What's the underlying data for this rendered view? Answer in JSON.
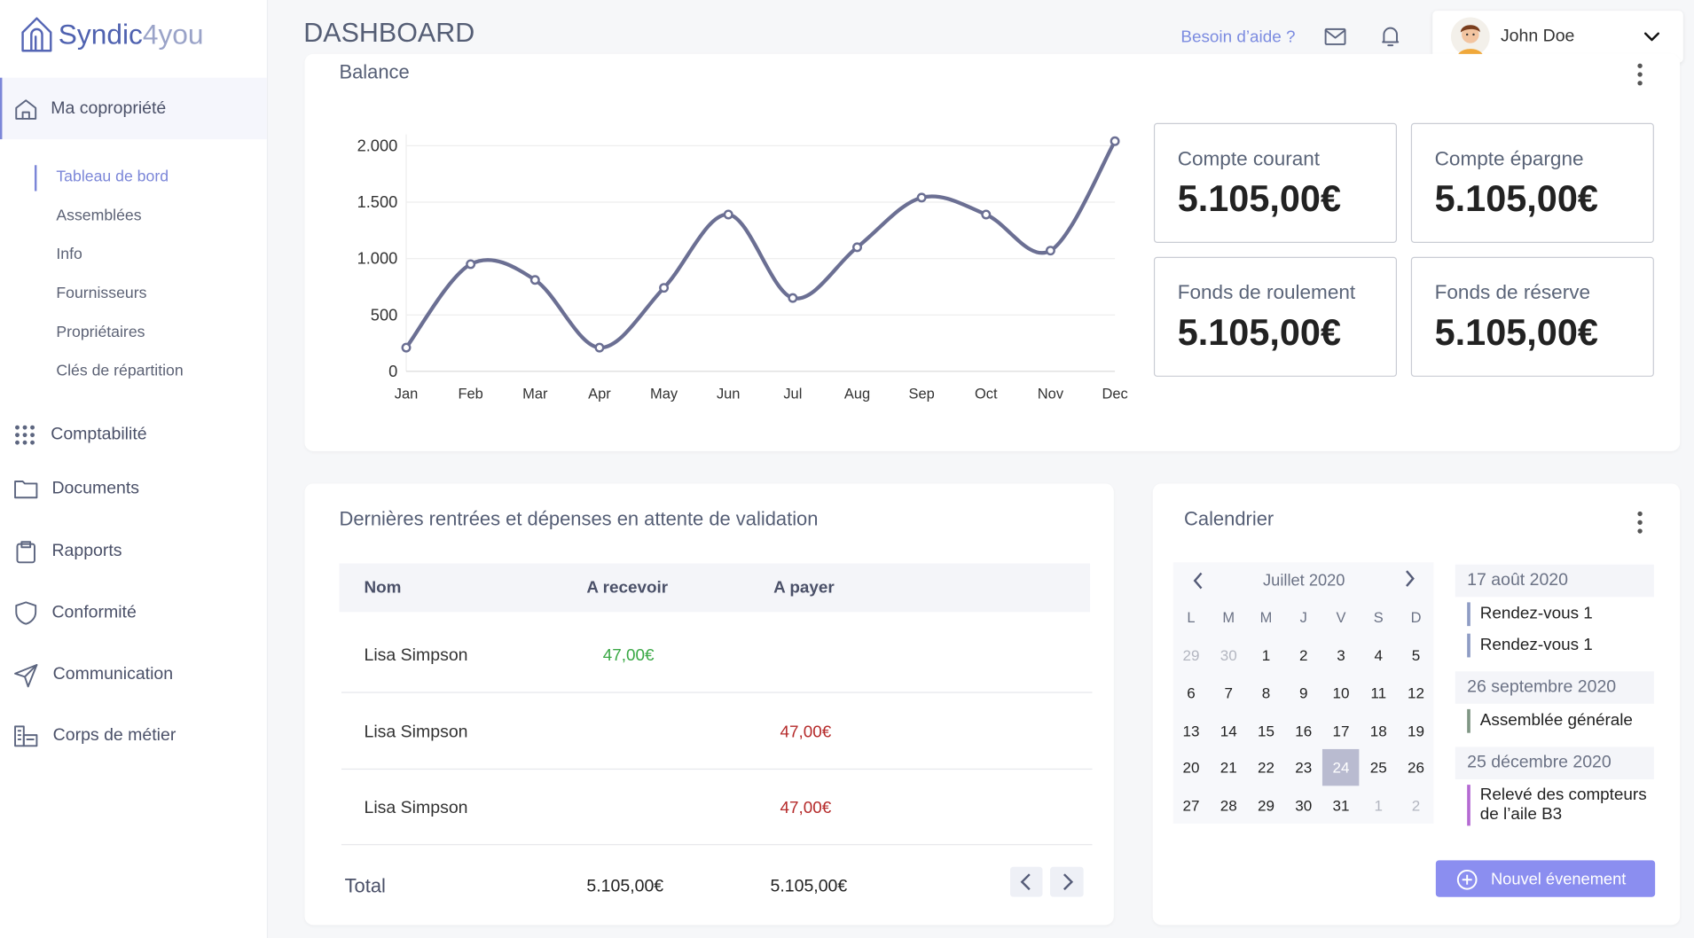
{
  "sidebar": {
    "logo": {
      "brand": "Syndic",
      "suffix": "4you"
    },
    "section": {
      "label": "Ma copropriété",
      "submenu": [
        "Tableau de bord",
        "Assemblées",
        "Info",
        "Fournisseurs",
        "Propriétaires",
        "Clés de répartition"
      ]
    },
    "menu": [
      "Comptabilité",
      "Documents",
      "Rapports",
      "Conformité",
      "Communication",
      "Corps de métier"
    ]
  },
  "header": {
    "title": "DASHBOARD",
    "help": "Besoin d’aide ?",
    "user": "John Doe"
  },
  "chart_data": {
    "type": "line",
    "title": "Balance",
    "categories": [
      "Jan",
      "Feb",
      "Mar",
      "Apr",
      "May",
      "Jun",
      "Jul",
      "Aug",
      "Sep",
      "Oct",
      "Nov",
      "Dec"
    ],
    "series": [
      {
        "name": "Balance",
        "color": "#6b6f93",
        "values": [
          210,
          950,
          810,
          210,
          740,
          1390,
          650,
          1100,
          1540,
          1390,
          1070,
          2040
        ]
      }
    ],
    "ylim": [
      0,
      2100
    ],
    "yticks": [
      0,
      500,
      {
        "value": 1000,
        "label": "1.000"
      },
      {
        "value": 1500,
        "label": "1.500"
      },
      {
        "value": 2000,
        "label": "2.000"
      }
    ],
    "grid": true
  },
  "accounts": [
    {
      "label": "Compte courant",
      "amount": "5.105,00€"
    },
    {
      "label": "Compte épargne",
      "amount": "5.105,00€"
    },
    {
      "label": "Fonds de roulement",
      "amount": "5.105,00€"
    },
    {
      "label": "Fonds de réserve",
      "amount": "5.105,00€"
    }
  ],
  "transactions": {
    "title": "Dernières rentrées et dépenses en attente de validation",
    "columns": [
      "Nom",
      "A recevoir",
      "A payer"
    ],
    "rows": [
      {
        "name": "Lisa Simpson",
        "receive": "47,00€"
      },
      {
        "name": "Lisa Simpson",
        "pay": "47,00€"
      },
      {
        "name": "Lisa Simpson",
        "pay": "47,00€"
      }
    ],
    "total": {
      "label": "Total",
      "receive": "5.105,00€",
      "pay": "5.105,00€"
    }
  },
  "calendar": {
    "title": "Calendrier",
    "month": "Juillet 2020",
    "weekdays": [
      "L",
      "M",
      "M",
      "J",
      "V",
      "S",
      "D"
    ],
    "weeks": [
      [
        29,
        30,
        1,
        2,
        3,
        4,
        5
      ],
      [
        6,
        7,
        8,
        9,
        10,
        11,
        12
      ],
      [
        13,
        14,
        15,
        16,
        17,
        18,
        19
      ],
      [
        20,
        21,
        22,
        23,
        24,
        25,
        26
      ],
      [
        27,
        28,
        29,
        30,
        31,
        1,
        2
      ]
    ],
    "selected_day": 24,
    "events": [
      {
        "date": "17 août 2020",
        "items": [
          {
            "label": "Rendez-vous 1",
            "color": "#8e9cc4"
          },
          {
            "label": "Rendez-vous 1",
            "color": "#8e9cc4"
          }
        ]
      },
      {
        "date": "26 septembre 2020",
        "items": [
          {
            "label": "Assemblée générale",
            "color": "#7f9684"
          }
        ]
      },
      {
        "date": "25 décembre 2020",
        "items": [
          {
            "label": "Relevé des compteurs de l’aile B3",
            "color": "#b46ad2"
          }
        ]
      }
    ],
    "button": "Nouvel évenement"
  }
}
